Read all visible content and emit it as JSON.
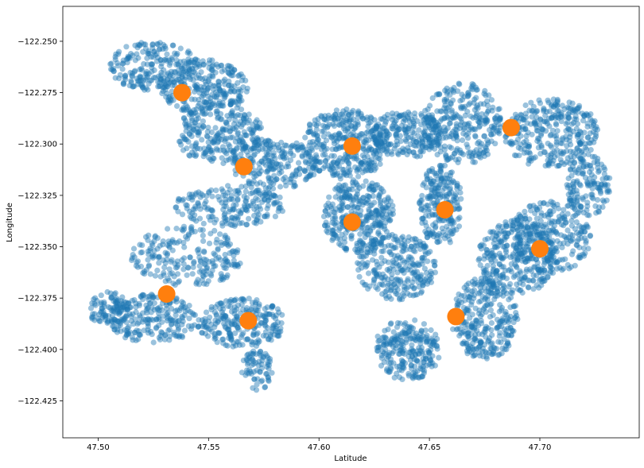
{
  "chart_data": {
    "type": "scatter",
    "title": "",
    "xlabel": "Latitude",
    "ylabel": "Longitude",
    "xlim": [
      47.484,
      47.745
    ],
    "ylim": [
      -122.443,
      -122.233
    ],
    "x_ticks": [
      47.5,
      47.55,
      47.6,
      47.65,
      47.7
    ],
    "x_tick_labels": [
      "47.50",
      "47.55",
      "47.60",
      "47.65",
      "47.70"
    ],
    "y_ticks": [
      -122.25,
      -122.275,
      -122.3,
      -122.325,
      -122.35,
      -122.375,
      -122.4,
      -122.425
    ],
    "y_tick_labels": [
      "−122.250",
      "−122.275",
      "−122.300",
      "−122.325",
      "−122.350",
      "−122.375",
      "−122.400",
      "−122.425"
    ],
    "grid": false,
    "legend": "none",
    "series": [
      {
        "color": "#1f77b4",
        "alpha": 0.45,
        "regions": [
          {
            "cx": 47.525,
            "cy": -122.262,
            "rx": 0.02,
            "ry": 0.012,
            "n": 200
          },
          {
            "cx": 47.548,
            "cy": -122.272,
            "rx": 0.02,
            "ry": 0.014,
            "n": 260
          },
          {
            "cx": 47.555,
            "cy": -122.295,
            "rx": 0.02,
            "ry": 0.015,
            "n": 260
          },
          {
            "cx": 47.58,
            "cy": -122.31,
            "rx": 0.02,
            "ry": 0.012,
            "n": 220
          },
          {
            "cx": 47.56,
            "cy": -122.33,
            "rx": 0.025,
            "ry": 0.01,
            "n": 200
          },
          {
            "cx": 47.54,
            "cy": -122.355,
            "rx": 0.025,
            "ry": 0.015,
            "n": 220
          },
          {
            "cx": 47.525,
            "cy": -122.385,
            "rx": 0.02,
            "ry": 0.012,
            "n": 220
          },
          {
            "cx": 47.565,
            "cy": -122.387,
            "rx": 0.02,
            "ry": 0.012,
            "n": 240
          },
          {
            "cx": 47.572,
            "cy": -122.41,
            "rx": 0.007,
            "ry": 0.01,
            "n": 70
          },
          {
            "cx": 47.505,
            "cy": -122.38,
            "rx": 0.01,
            "ry": 0.008,
            "n": 90
          },
          {
            "cx": 47.612,
            "cy": -122.3,
            "rx": 0.02,
            "ry": 0.017,
            "n": 360
          },
          {
            "cx": 47.64,
            "cy": -122.295,
            "rx": 0.015,
            "ry": 0.012,
            "n": 200
          },
          {
            "cx": 47.618,
            "cy": -122.335,
            "rx": 0.016,
            "ry": 0.018,
            "n": 320
          },
          {
            "cx": 47.635,
            "cy": -122.36,
            "rx": 0.018,
            "ry": 0.016,
            "n": 260
          },
          {
            "cx": 47.655,
            "cy": -122.33,
            "rx": 0.01,
            "ry": 0.02,
            "n": 220
          },
          {
            "cx": 47.64,
            "cy": -122.4,
            "rx": 0.015,
            "ry": 0.015,
            "n": 240
          },
          {
            "cx": 47.675,
            "cy": -122.385,
            "rx": 0.015,
            "ry": 0.02,
            "n": 300
          },
          {
            "cx": 47.69,
            "cy": -122.355,
            "rx": 0.018,
            "ry": 0.018,
            "n": 320
          },
          {
            "cx": 47.705,
            "cy": -122.345,
            "rx": 0.018,
            "ry": 0.018,
            "n": 240
          },
          {
            "cx": 47.665,
            "cy": -122.29,
            "rx": 0.018,
            "ry": 0.02,
            "n": 300
          },
          {
            "cx": 47.705,
            "cy": -122.295,
            "rx": 0.022,
            "ry": 0.017,
            "n": 320
          },
          {
            "cx": 47.722,
            "cy": -122.32,
            "rx": 0.01,
            "ry": 0.015,
            "n": 140
          }
        ]
      },
      {
        "color": "#ff7f0e",
        "alpha": 1,
        "points": [
          {
            "x": 47.538,
            "y": -122.275
          },
          {
            "x": 47.566,
            "y": -122.311
          },
          {
            "x": 47.615,
            "y": -122.301
          },
          {
            "x": 47.615,
            "y": -122.338
          },
          {
            "x": 47.657,
            "y": -122.332
          },
          {
            "x": 47.687,
            "y": -122.292
          },
          {
            "x": 47.7,
            "y": -122.351
          },
          {
            "x": 47.531,
            "y": -122.373
          },
          {
            "x": 47.568,
            "y": -122.386
          },
          {
            "x": 47.662,
            "y": -122.384
          }
        ]
      }
    ]
  }
}
